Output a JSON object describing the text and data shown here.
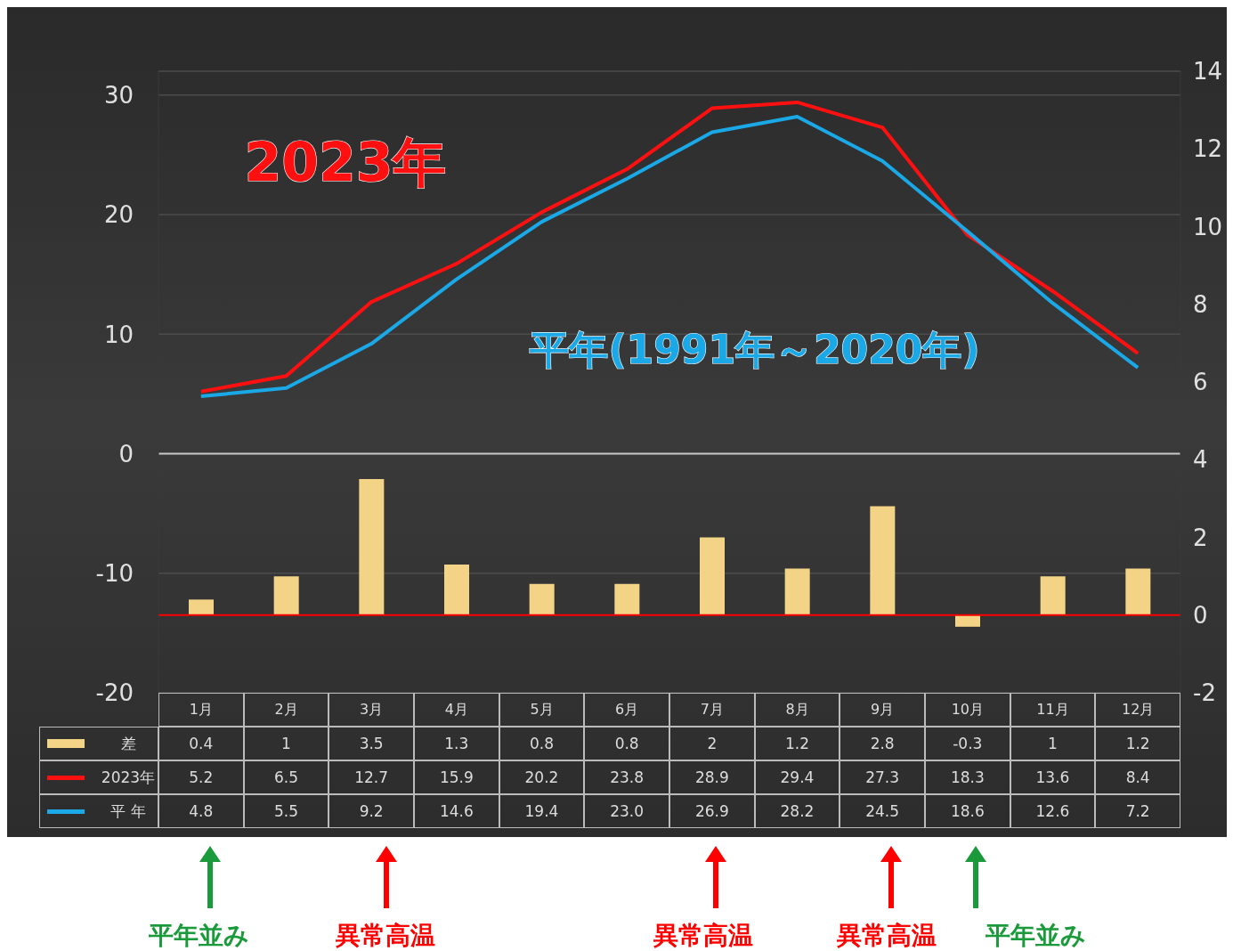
{
  "chart_data": {
    "type": "bar",
    "categories": [
      "1月",
      "2月",
      "3月",
      "4月",
      "5月",
      "6月",
      "7月",
      "8月",
      "9月",
      "10月",
      "11月",
      "12月"
    ],
    "series": [
      {
        "name": "差",
        "axis": "y2",
        "color": "#f3d487",
        "values": [
          0.4,
          1,
          3.5,
          1.3,
          0.8,
          0.8,
          2,
          1.2,
          2.8,
          -0.3,
          1,
          1.2
        ],
        "value_labels": [
          "0.4",
          "1",
          "3.5",
          "1.3",
          "0.8",
          "0.8",
          "2",
          "1.2",
          "2.8",
          "-0.3",
          "1",
          "1.2"
        ]
      },
      {
        "name": "2023年",
        "type": "line",
        "axis": "y",
        "color": "#ff1010",
        "values": [
          5.2,
          6.5,
          12.7,
          15.9,
          20.2,
          23.8,
          28.9,
          29.4,
          27.3,
          18.3,
          13.6,
          8.4
        ],
        "value_labels": [
          "5.2",
          "6.5",
          "12.7",
          "15.9",
          "20.2",
          "23.8",
          "28.9",
          "29.4",
          "27.3",
          "18.3",
          "13.6",
          "8.4"
        ]
      },
      {
        "name": "平 年",
        "type": "line",
        "axis": "y",
        "color": "#1aa8e6",
        "values": [
          4.8,
          5.5,
          9.2,
          14.6,
          19.4,
          23.0,
          26.9,
          28.2,
          24.5,
          18.6,
          12.6,
          7.2
        ],
        "value_labels": [
          "4.8",
          "5.5",
          "9.2",
          "14.6",
          "19.4",
          "23.0",
          "26.9",
          "28.2",
          "24.5",
          "18.6",
          "12.6",
          "7.2"
        ]
      }
    ],
    "ylim": [
      -20,
      32
    ],
    "yticks": [
      -20,
      -10,
      0,
      10,
      20,
      30
    ],
    "y2lim": [
      -2,
      14
    ],
    "y2ticks": [
      -2,
      0,
      2,
      4,
      6,
      8,
      10,
      12,
      14
    ],
    "ref_lines": [
      {
        "axis": "y",
        "value": 0,
        "color": "#c8c8c8"
      },
      {
        "axis": "y2",
        "value": 0,
        "color": "#ff0000"
      }
    ],
    "grid": "y",
    "legend": "bottom",
    "marker": "none",
    "line_style": "solid",
    "annotations": [
      "2023年",
      "平年(1991年～2020年)",
      "平年並み",
      "異常高温",
      "異常高温",
      "異常高温",
      "平年並み"
    ]
  }
}
